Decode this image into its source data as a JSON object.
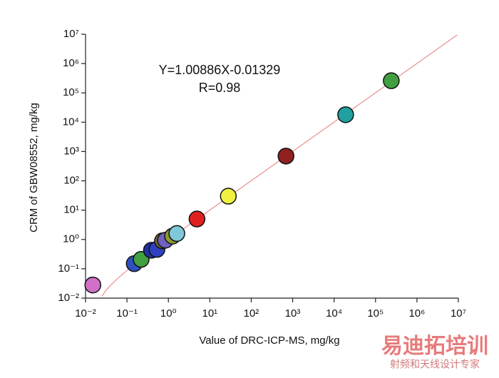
{
  "chart_data": {
    "type": "scatter",
    "x_label": "Value of DRC-ICP-MS, mg/kg",
    "y_label": "CRM of GBW08552, mg/kg",
    "annotations": [
      "Y=1.00886X-0.01329",
      "R=0.98"
    ],
    "fit_line": {
      "slope": 1.00886,
      "intercept": -0.01329,
      "color": "#e89090"
    },
    "log_x": true,
    "log_y": true,
    "xlim": [
      0.01,
      10000000
    ],
    "ylim": [
      0.01,
      10000000
    ],
    "xticks": [
      {
        "value": 0.01,
        "label": "10⁻²"
      },
      {
        "value": 0.1,
        "label": "10⁻¹"
      },
      {
        "value": 1,
        "label": "10⁰"
      },
      {
        "value": 10,
        "label": "10¹"
      },
      {
        "value": 100,
        "label": "10²"
      },
      {
        "value": 1000,
        "label": "10³"
      },
      {
        "value": 10000,
        "label": "10⁴"
      },
      {
        "value": 100000,
        "label": "10⁵"
      },
      {
        "value": 1000000,
        "label": "10⁶"
      },
      {
        "value": 10000000,
        "label": "10⁷"
      }
    ],
    "yticks": [
      {
        "value": 0.01,
        "label": "10⁻²"
      },
      {
        "value": 0.1,
        "label": "10⁻¹"
      },
      {
        "value": 1,
        "label": "10⁰"
      },
      {
        "value": 10,
        "label": "10¹"
      },
      {
        "value": 100,
        "label": "10²"
      },
      {
        "value": 1000,
        "label": "10³"
      },
      {
        "value": 10000,
        "label": "10⁴"
      },
      {
        "value": 100000,
        "label": "10⁵"
      },
      {
        "value": 1000000,
        "label": "10⁶"
      },
      {
        "value": 10000000,
        "label": "10⁷"
      }
    ],
    "x": [
      0.015,
      0.15,
      0.22,
      0.39,
      0.53,
      0.72,
      0.85,
      1.26,
      1.6,
      4.9,
      28,
      690,
      19000,
      240000
    ],
    "values": [
      0.028,
      0.15,
      0.21,
      0.43,
      0.46,
      0.9,
      0.95,
      1.3,
      1.6,
      5,
      30,
      700,
      18000,
      260000
    ],
    "colors": [
      "#d070c8",
      "#3050c0",
      "#40a040",
      "#2030a0",
      "#3040c0",
      "#7a6a30",
      "#7060c0",
      "#8a9a30",
      "#80c8d8",
      "#e02020",
      "#f0f040",
      "#902020",
      "#20a0a0",
      "#40a040"
    ],
    "watermark": [
      "易迪拓培训",
      "射频和天线设计专家"
    ]
  }
}
